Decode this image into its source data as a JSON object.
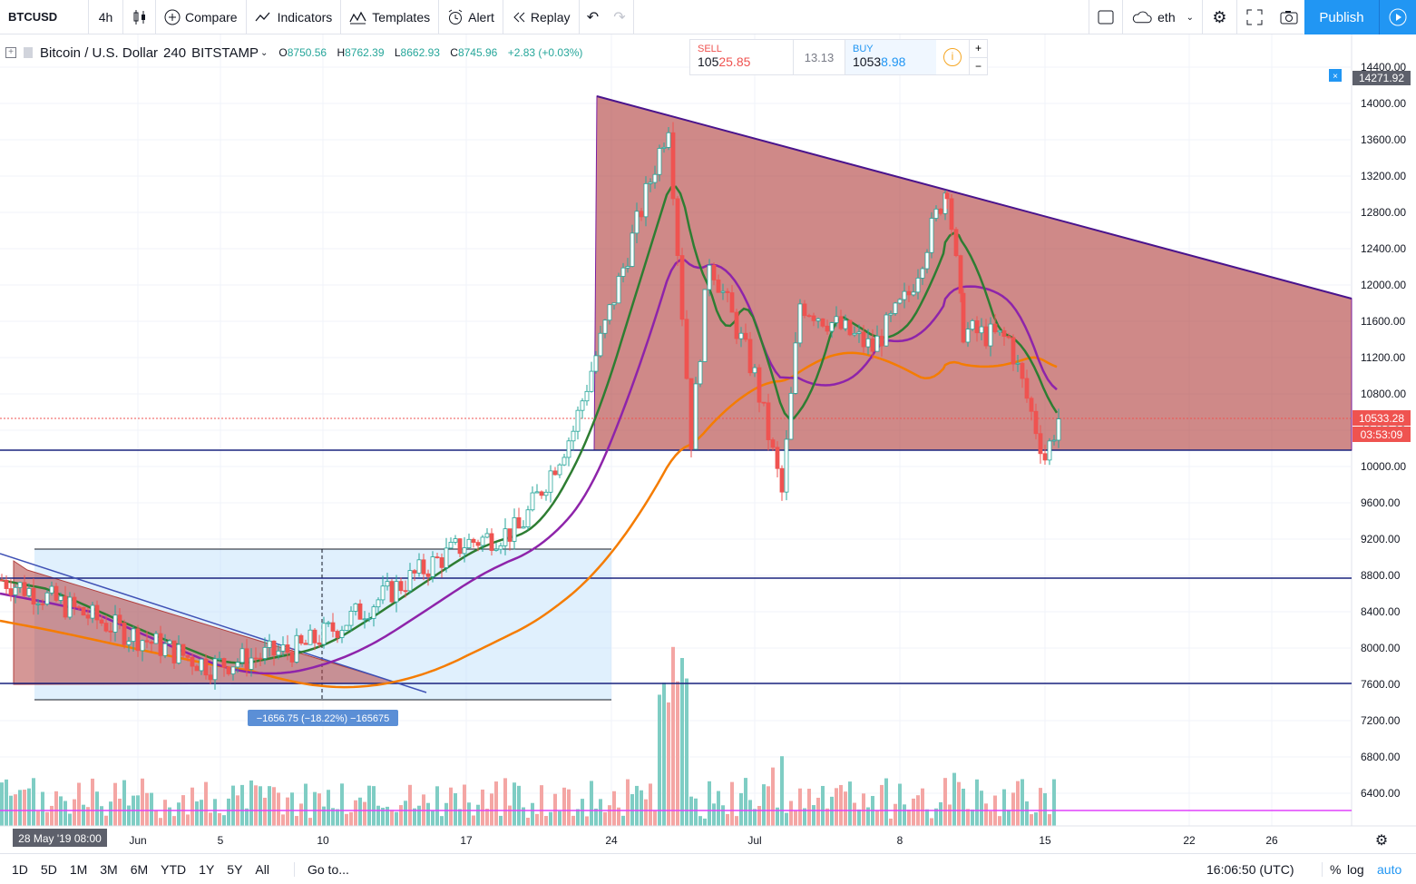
{
  "toolbar": {
    "symbol": "BTCUSD",
    "interval": "4h",
    "compare": "Compare",
    "indicators": "Indicators",
    "templates": "Templates",
    "alert": "Alert",
    "replay": "Replay",
    "cloud_label": "eth",
    "publish": "Publish"
  },
  "legend": {
    "title": "Bitcoin / U.S. Dollar",
    "interval": "240",
    "exchange": "BITSTAMP",
    "open_label": "O",
    "open": "8750.56",
    "high_label": "H",
    "high": "8762.39",
    "low_label": "L",
    "low": "8662.93",
    "close_label": "C",
    "close": "8745.96",
    "change": "+2.83 (+0.03%)"
  },
  "trade": {
    "sell_label": "SELL",
    "sell_main": "105",
    "sell_big": "25.85",
    "spread": "13.13",
    "buy_label": "BUY",
    "buy_main": "1053",
    "buy_big": "8.98"
  },
  "price_axis": {
    "ticks": [
      "14400.00",
      "14000.00",
      "13600.00",
      "13200.00",
      "12800.00",
      "12400.00",
      "12000.00",
      "11600.00",
      "11200.00",
      "10800.00",
      "10400.00",
      "10000.00",
      "9600.00",
      "9200.00",
      "8800.00",
      "8400.00",
      "8000.00",
      "7600.00",
      "7200.00",
      "6800.00",
      "6400.00"
    ],
    "top_marker": "14271.92",
    "last_price": "10533.28",
    "countdown": "03:53:09"
  },
  "time_axis": {
    "ticks": [
      "Jun",
      "5",
      "10",
      "17",
      "24",
      "Jul",
      "8",
      "15",
      "22",
      "26"
    ],
    "crosshair_label": "28 May '19   08:00"
  },
  "measure": {
    "label": "−1656.75 (−18.22%) −165675"
  },
  "bottom": {
    "ranges": [
      "1D",
      "5D",
      "1M",
      "3M",
      "6M",
      "YTD",
      "1Y",
      "5Y",
      "All"
    ],
    "goto": "Go to...",
    "clock": "16:06:50 (UTC)",
    "percent": "%",
    "log": "log",
    "auto": "auto"
  },
  "colors": {
    "accent": "#2196f3",
    "up": "#26a69a",
    "down": "#ef5350",
    "triangle_fill": "#b2413f",
    "ma_green": "#1b7a1b",
    "ma_purple": "#7b1fa2",
    "ma_orange": "#f57c00"
  },
  "chart_data": {
    "type": "line",
    "title": "Bitcoin / U.S. Dollar",
    "series": [
      {
        "name": "BTCUSD",
        "values": [
          8750,
          8600,
          8200,
          7800,
          8000,
          8300,
          8900,
          9150,
          9300,
          10400,
          10900,
          13800,
          10300,
          12300,
          11000,
          9700,
          11800,
          11300,
          11900,
          13100,
          11500,
          11400,
          10100,
          10533
        ]
      }
    ],
    "ylim": [
      6000,
      14600
    ],
    "levels": [
      10120,
      8750,
      7600
    ]
  }
}
